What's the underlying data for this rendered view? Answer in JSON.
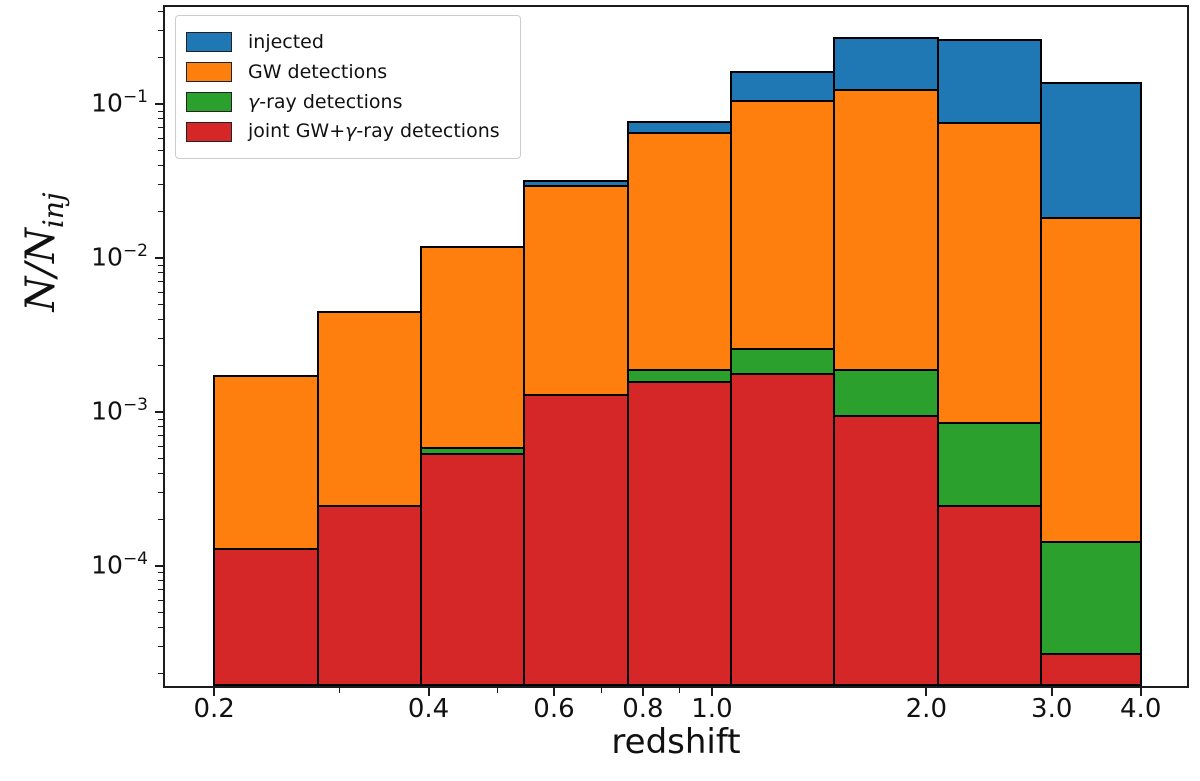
{
  "chart_data": {
    "type": "bar",
    "variant": "overlaid-step-histograms-log-log",
    "title": "",
    "xlabel": "redshift",
    "ylabel": "N/N_inj",
    "ylabel_parts": {
      "numerator": "N",
      "slash": "/",
      "denominator": "N",
      "subscript": "inj"
    },
    "x_scale": "log",
    "y_scale": "log",
    "x_range": [
      0.1706,
      4.646
    ],
    "y_range": [
      1.66e-05,
      0.427
    ],
    "grid": false,
    "legend_position": "upper left",
    "bar_edge_color": "#000000",
    "bin_edges": [
      0.2,
      0.2794,
      0.3903,
      0.5452,
      0.7616,
      1.0639,
      1.486,
      2.0759,
      2.8999,
      4.0
    ],
    "series": [
      {
        "name": "injected",
        "color": "#1f77b4",
        "values": [
          0.00174,
          0.0045,
          0.012,
          0.032,
          0.078,
          0.165,
          0.272,
          0.264,
          0.14
        ]
      },
      {
        "name": "GW detections",
        "color": "#ff7f0e",
        "values": [
          0.00174,
          0.0045,
          0.012,
          0.03,
          0.066,
          0.107,
          0.125,
          0.076,
          0.0185
        ]
      },
      {
        "name": "γ-ray detections",
        "color": "#2ca02c",
        "values": [
          0.00013,
          0.00025,
          0.00059,
          0.0013,
          0.0019,
          0.0026,
          0.0019,
          0.00086,
          0.000145
        ]
      },
      {
        "name": "joint GW+γ-ray detections",
        "color": "#d62728",
        "values": [
          0.00013,
          0.00025,
          0.00054,
          0.0013,
          0.0016,
          0.0018,
          0.00095,
          0.00025,
          2.7e-05
        ]
      }
    ],
    "x_ticks": [
      {
        "v": 0.2,
        "label": "0.2"
      },
      {
        "v": 0.4,
        "label": "0.4"
      },
      {
        "v": 0.6,
        "label": "0.6"
      },
      {
        "v": 0.8,
        "label": "0.8"
      },
      {
        "v": 1.0,
        "label": "1.0"
      },
      {
        "v": 2.0,
        "label": "2.0"
      },
      {
        "v": 3.0,
        "label": "3.0"
      },
      {
        "v": 4.0,
        "label": "4.0"
      }
    ],
    "x_minor_ticks": [
      0.3,
      0.5,
      0.7,
      0.9
    ],
    "y_tick_exponents": [
      -1,
      -2,
      -3,
      -4
    ],
    "y_tick_labels": [
      "10⁻¹",
      "10⁻²",
      "10⁻³",
      "10⁻⁴"
    ]
  }
}
